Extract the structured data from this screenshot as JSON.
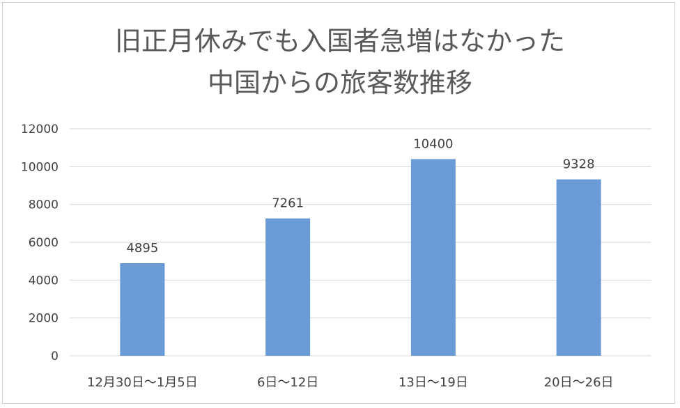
{
  "chart_data": {
    "type": "bar",
    "title_lines": [
      "旧正月休みでも入国者急増はなかった",
      "中国からの旅客数推移"
    ],
    "categories": [
      "12月30日～1月5日",
      "6日～12日",
      "13日～19日",
      "20日～26日"
    ],
    "values": [
      4895,
      7261,
      10400,
      9328
    ],
    "ylim": [
      0,
      12000
    ],
    "yticks": [
      0,
      2000,
      4000,
      6000,
      8000,
      10000,
      12000
    ],
    "grid": true,
    "legend": "none",
    "bar_color": "#6a9bd6",
    "grid_color": "#d9d9d9"
  }
}
